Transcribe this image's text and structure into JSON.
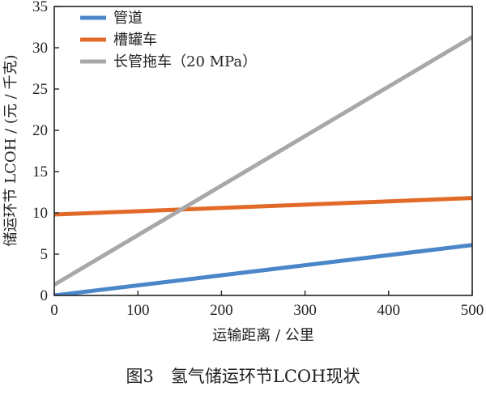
{
  "figure": {
    "caption": "图3　氢气储运环节LCOH现状"
  },
  "chart_data": {
    "type": "line",
    "title": "",
    "xlabel": "运输距离 / 公里",
    "ylabel": "储运环节 LCOH / (元 / 千克)",
    "xlim": [
      0,
      500
    ],
    "ylim": [
      0,
      35
    ],
    "xticks": [
      0,
      100,
      200,
      300,
      400,
      500
    ],
    "yticks": [
      0,
      5,
      10,
      15,
      20,
      25,
      30,
      35
    ],
    "grid": false,
    "legend_position": "top-left",
    "series": [
      {
        "name": "管道",
        "color": "#4a86c8",
        "x": [
          0,
          500
        ],
        "y": [
          0.0,
          6.1
        ]
      },
      {
        "name": "槽罐车",
        "color": "#e26a28",
        "x": [
          0,
          500
        ],
        "y": [
          9.8,
          11.8
        ]
      },
      {
        "name": "长管拖车（20 MPa）",
        "color": "#a8a8a8",
        "x": [
          0,
          500
        ],
        "y": [
          1.3,
          31.3
        ]
      }
    ]
  }
}
